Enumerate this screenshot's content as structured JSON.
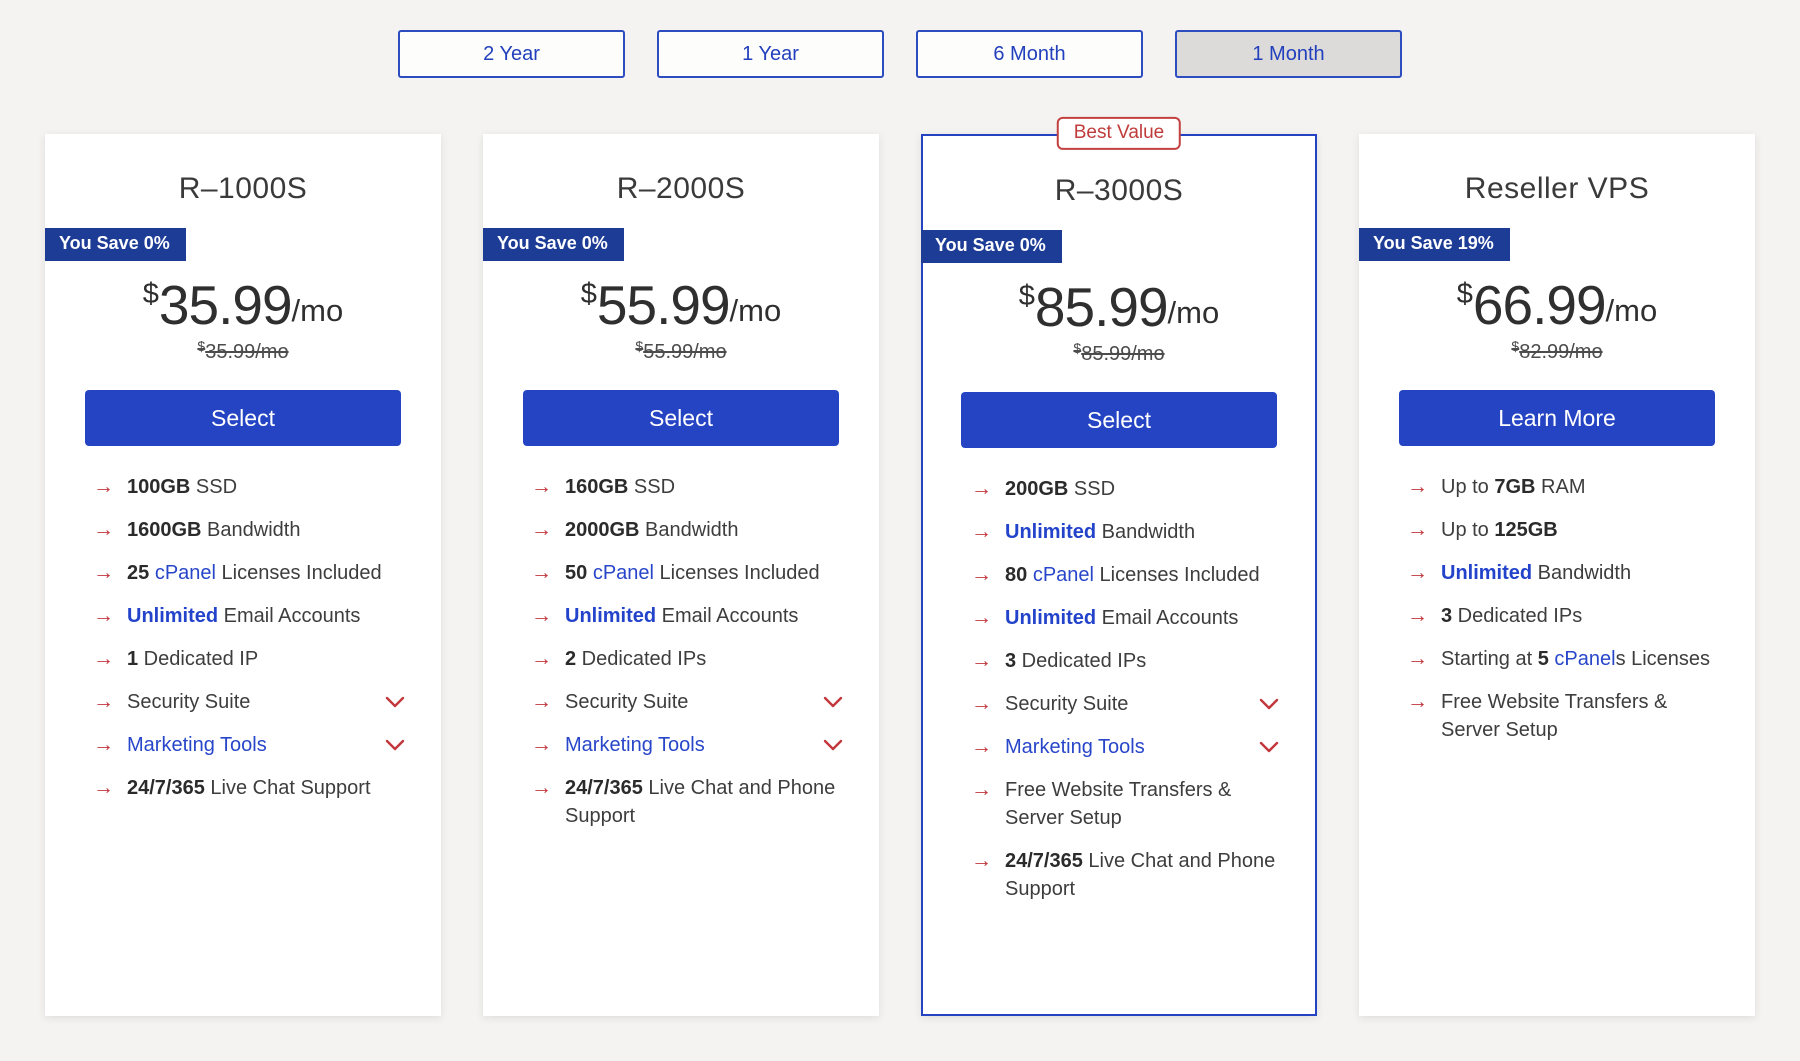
{
  "colors": {
    "page_background": "#f4f3f1",
    "button_blue": "#2444c4",
    "badge_navy": "#1d3c96",
    "link_blue": "#2846c9",
    "accent_red": "#c2373c",
    "tab_blue": "#2240bd",
    "selected_tab_background": "#dcdbd9",
    "best_value_red": "#c03b3b"
  },
  "icons": {
    "arrow": "→"
  },
  "tabs": [
    {
      "label": "2 Year",
      "selected": false
    },
    {
      "label": "1 Year",
      "selected": false
    },
    {
      "label": "6 Month",
      "selected": false
    },
    {
      "label": "1 Month",
      "selected": true
    }
  ],
  "cards": [
    {
      "title": "R–1000S",
      "save_badge": "You Save 0%",
      "price": {
        "currency": "$",
        "amount": "35.99",
        "period": "/mo"
      },
      "old_price": {
        "currency": "$",
        "amount": "35.99/mo"
      },
      "button_label": "Select",
      "best_value_label": null,
      "features": [
        {
          "segments": [
            {
              "text": "100GB",
              "style": "bold"
            },
            {
              "text": " SSD",
              "style": "plain"
            }
          ],
          "chevron": false
        },
        {
          "segments": [
            {
              "text": "1600GB",
              "style": "bold"
            },
            {
              "text": " Bandwidth",
              "style": "plain"
            }
          ],
          "chevron": false
        },
        {
          "segments": [
            {
              "text": "25",
              "style": "bold"
            },
            {
              "text": " ",
              "style": "plain"
            },
            {
              "text": "cPanel",
              "style": "link"
            },
            {
              "text": " Licenses Included",
              "style": "plain"
            }
          ],
          "chevron": false
        },
        {
          "segments": [
            {
              "text": "Unlimited",
              "style": "bold-link"
            },
            {
              "text": " Email Accounts",
              "style": "plain"
            }
          ],
          "chevron": false
        },
        {
          "segments": [
            {
              "text": "1",
              "style": "bold"
            },
            {
              "text": " Dedicated IP",
              "style": "plain"
            }
          ],
          "chevron": false
        },
        {
          "segments": [
            {
              "text": "Security Suite",
              "style": "plain"
            }
          ],
          "chevron": true
        },
        {
          "segments": [
            {
              "text": "Marketing Tools",
              "style": "link"
            }
          ],
          "chevron": true
        },
        {
          "segments": [
            {
              "text": "24/7/365",
              "style": "bold"
            },
            {
              "text": " Live Chat Support",
              "style": "plain"
            }
          ],
          "chevron": false
        }
      ]
    },
    {
      "title": "R–2000S",
      "save_badge": "You Save 0%",
      "price": {
        "currency": "$",
        "amount": "55.99",
        "period": "/mo"
      },
      "old_price": {
        "currency": "$",
        "amount": "55.99/mo"
      },
      "button_label": "Select",
      "best_value_label": null,
      "features": [
        {
          "segments": [
            {
              "text": "160GB",
              "style": "bold"
            },
            {
              "text": " SSD",
              "style": "plain"
            }
          ],
          "chevron": false
        },
        {
          "segments": [
            {
              "text": "2000GB",
              "style": "bold"
            },
            {
              "text": " Bandwidth",
              "style": "plain"
            }
          ],
          "chevron": false
        },
        {
          "segments": [
            {
              "text": "50",
              "style": "bold"
            },
            {
              "text": " ",
              "style": "plain"
            },
            {
              "text": "cPanel",
              "style": "link"
            },
            {
              "text": " Licenses Included",
              "style": "plain"
            }
          ],
          "chevron": false
        },
        {
          "segments": [
            {
              "text": "Unlimited",
              "style": "bold-link"
            },
            {
              "text": " Email Accounts",
              "style": "plain"
            }
          ],
          "chevron": false
        },
        {
          "segments": [
            {
              "text": "2",
              "style": "bold"
            },
            {
              "text": " Dedicated IPs",
              "style": "plain"
            }
          ],
          "chevron": false
        },
        {
          "segments": [
            {
              "text": "Security Suite",
              "style": "plain"
            }
          ],
          "chevron": true
        },
        {
          "segments": [
            {
              "text": "Marketing Tools",
              "style": "link"
            }
          ],
          "chevron": true
        },
        {
          "segments": [
            {
              "text": "24/7/365",
              "style": "bold"
            },
            {
              "text": " Live Chat and Phone Support",
              "style": "plain"
            }
          ],
          "chevron": false
        }
      ]
    },
    {
      "title": "R–3000S",
      "save_badge": "You Save 0%",
      "price": {
        "currency": "$",
        "amount": "85.99",
        "period": "/mo"
      },
      "old_price": {
        "currency": "$",
        "amount": "85.99/mo"
      },
      "button_label": "Select",
      "best_value_label": "Best Value",
      "features": [
        {
          "segments": [
            {
              "text": "200GB",
              "style": "bold"
            },
            {
              "text": " SSD",
              "style": "plain"
            }
          ],
          "chevron": false
        },
        {
          "segments": [
            {
              "text": "Unlimited",
              "style": "bold-link"
            },
            {
              "text": " Bandwidth",
              "style": "plain"
            }
          ],
          "chevron": false
        },
        {
          "segments": [
            {
              "text": "80",
              "style": "bold"
            },
            {
              "text": " ",
              "style": "plain"
            },
            {
              "text": "cPanel",
              "style": "link"
            },
            {
              "text": " Licenses Included",
              "style": "plain"
            }
          ],
          "chevron": false
        },
        {
          "segments": [
            {
              "text": "Unlimited",
              "style": "bold-link"
            },
            {
              "text": " Email Accounts",
              "style": "plain"
            }
          ],
          "chevron": false
        },
        {
          "segments": [
            {
              "text": "3",
              "style": "bold"
            },
            {
              "text": " Dedicated IPs",
              "style": "plain"
            }
          ],
          "chevron": false
        },
        {
          "segments": [
            {
              "text": "Security Suite",
              "style": "plain"
            }
          ],
          "chevron": true
        },
        {
          "segments": [
            {
              "text": "Marketing Tools",
              "style": "link"
            }
          ],
          "chevron": true
        },
        {
          "segments": [
            {
              "text": "Free Website Transfers & Server Setup",
              "style": "plain"
            }
          ],
          "chevron": false
        },
        {
          "segments": [
            {
              "text": "24/7/365",
              "style": "bold"
            },
            {
              "text": " Live Chat and Phone Support",
              "style": "plain"
            }
          ],
          "chevron": false
        }
      ]
    },
    {
      "title": "Reseller VPS",
      "save_badge": "You Save 19%",
      "price": {
        "currency": "$",
        "amount": "66.99",
        "period": "/mo"
      },
      "old_price": {
        "currency": "$",
        "amount": "82.99/mo"
      },
      "button_label": "Learn More",
      "best_value_label": null,
      "features": [
        {
          "segments": [
            {
              "text": "Up to ",
              "style": "plain"
            },
            {
              "text": "7GB",
              "style": "bold"
            },
            {
              "text": " RAM",
              "style": "plain"
            }
          ],
          "chevron": false
        },
        {
          "segments": [
            {
              "text": "Up to ",
              "style": "plain"
            },
            {
              "text": "125GB",
              "style": "bold"
            }
          ],
          "chevron": false
        },
        {
          "segments": [
            {
              "text": "Unlimited",
              "style": "bold-link"
            },
            {
              "text": " Bandwidth",
              "style": "plain"
            }
          ],
          "chevron": false
        },
        {
          "segments": [
            {
              "text": "3",
              "style": "bold"
            },
            {
              "text": " Dedicated IPs",
              "style": "plain"
            }
          ],
          "chevron": false
        },
        {
          "segments": [
            {
              "text": "Starting at ",
              "style": "plain"
            },
            {
              "text": "5",
              "style": "bold"
            },
            {
              "text": " ",
              "style": "plain"
            },
            {
              "text": "cPanel",
              "style": "link"
            },
            {
              "text": "s Licenses",
              "style": "plain"
            }
          ],
          "chevron": false
        },
        {
          "segments": [
            {
              "text": "Free Website Transfers & Server Setup",
              "style": "plain"
            }
          ],
          "chevron": false
        }
      ]
    }
  ]
}
